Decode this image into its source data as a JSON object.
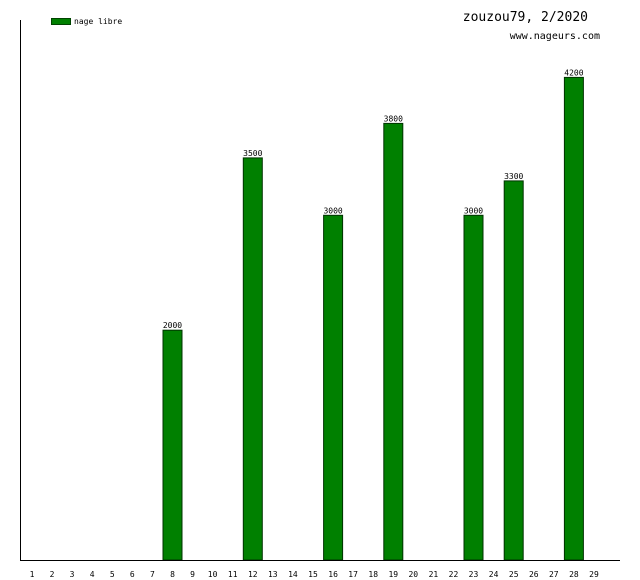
{
  "chart_data": {
    "type": "bar",
    "title": "zouzou79, 2/2020",
    "subtitle": "www.nageurs.com",
    "legend": {
      "position": "top-left",
      "entries": [
        "nage libre"
      ]
    },
    "categories": [
      "1",
      "2",
      "3",
      "4",
      "5",
      "6",
      "7",
      "8",
      "9",
      "10",
      "11",
      "12",
      "13",
      "14",
      "15",
      "16",
      "17",
      "18",
      "19",
      "20",
      "21",
      "22",
      "23",
      "24",
      "25",
      "26",
      "27",
      "28",
      "29"
    ],
    "series": [
      {
        "name": "nage libre",
        "color": "#008000",
        "values": [
          0,
          0,
          0,
          0,
          0,
          0,
          0,
          2000,
          0,
          0,
          0,
          3500,
          0,
          0,
          0,
          3000,
          0,
          0,
          3800,
          0,
          0,
          0,
          3000,
          0,
          3300,
          0,
          0,
          4200,
          0
        ]
      }
    ],
    "ylim": [
      0,
      4700
    ],
    "xlabel": "",
    "ylabel": "",
    "grid": false
  }
}
